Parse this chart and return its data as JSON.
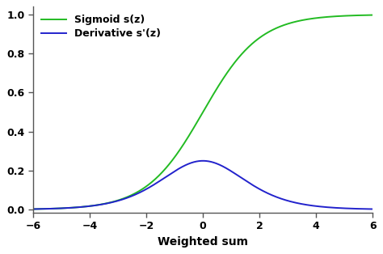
{
  "title": "",
  "xlabel": "Weighted sum",
  "ylabel": "",
  "xlim": [
    -6,
    6
  ],
  "ylim": [
    -0.015,
    1.04
  ],
  "xticks": [
    -6,
    -4,
    -2,
    0,
    2,
    4,
    6
  ],
  "yticks": [
    0.0,
    0.2,
    0.4,
    0.6,
    0.8,
    1.0
  ],
  "sigmoid_color": "#22bb22",
  "derivative_color": "#2222cc",
  "sigmoid_label": "Sigmoid s(z)",
  "derivative_label": "Derivative s'(z)",
  "line_width": 1.4,
  "figure_bg_color": "#ffffff",
  "axes_bg_color": "#ffffff",
  "legend_fontsize": 9,
  "tick_fontsize": 9,
  "xlabel_fontsize": 10,
  "spine_color": "#555555",
  "tick_color": "#555555"
}
